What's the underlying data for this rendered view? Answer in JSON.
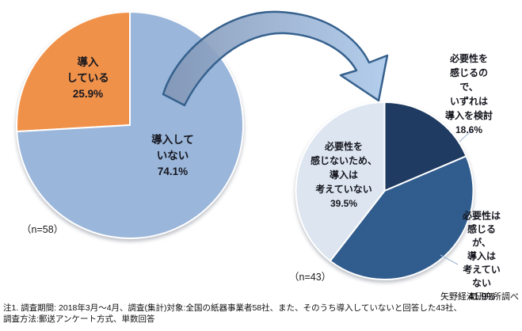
{
  "source_note": "矢野経済研究所調べ",
  "footnote_line1": "注1. 調査期間: 2018年3月～4月、調査(集計)対象:全国の紙器事業者58社、また、そのうち導入していないと回答した43社、",
  "footnote_line2": "調査方法:郵送アンケート方式、単数回答",
  "colors": {
    "leader_line": "#9bb3d2",
    "slice_border": "#ffffff"
  },
  "arrow": {
    "description": "curved block arrow from left pie to right pie",
    "fill_start": "#8296b5",
    "fill_end": "#abc8ea",
    "stroke": "#36618e"
  },
  "chart_data": [
    {
      "type": "pie",
      "name": "left-pie-adoption",
      "n_label": "（n=58）",
      "direction": "counterclockwise",
      "start_angle_deg": 0,
      "slices": [
        {
          "label": "導入している",
          "value_pct": 25.9,
          "color": "#f0914a",
          "callout": "導入\nしている\n25.9%"
        },
        {
          "label": "導入していない",
          "value_pct": 74.1,
          "color": "#9ab6da",
          "callout": "導入して\nいない\n74.1%"
        }
      ]
    },
    {
      "type": "pie",
      "name": "right-pie-reasons",
      "n_label": "（n=43）",
      "direction": "clockwise",
      "start_angle_deg": 0,
      "slices": [
        {
          "label": "必要性を感じるので、いずれは導入を検討",
          "value_pct": 18.6,
          "color": "#1f3b61",
          "callout": "必要性を\n感じるので、\nいずれは\n導入を検討\n18.6%"
        },
        {
          "label": "必要性は感じるが、導入は考えていない",
          "value_pct": 41.9,
          "color": "#315c8e",
          "callout": "必要性は\n感じるが、\n導入は\n考えていない\n41.9%"
        },
        {
          "label": "必要性を感じないため、導入は考えていない",
          "value_pct": 39.5,
          "color": "#dce5f0",
          "callout": "必要性を\n感じないため、\n導入は\n考えていない\n39.5%"
        }
      ]
    }
  ]
}
